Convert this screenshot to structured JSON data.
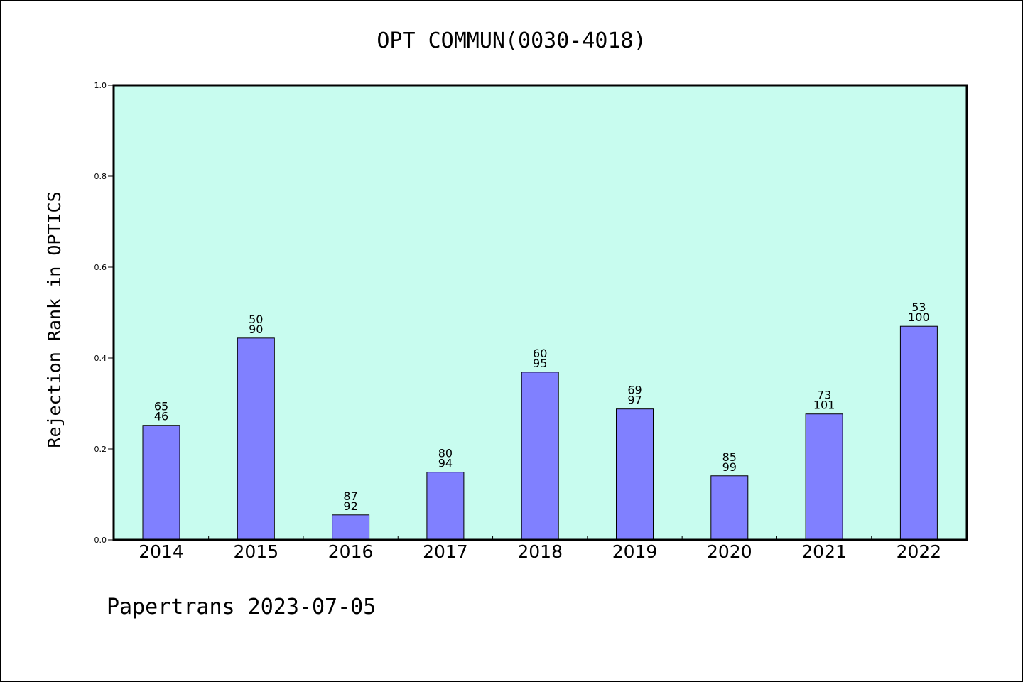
{
  "chart_data": {
    "type": "bar",
    "title": "OPT COMMUN(0030-4018)",
    "ylabel": "Rejection Rank in OPTICS",
    "xlabel": "",
    "ylim": [
      0,
      1
    ],
    "yticks": [
      "0.0",
      "0.2",
      "0.4",
      "0.6",
      "0.8",
      "1.0"
    ],
    "categories": [
      "2014",
      "2015",
      "2016",
      "2017",
      "2018",
      "2019",
      "2020",
      "2021",
      "2022"
    ],
    "values": [
      0.252,
      0.444,
      0.055,
      0.149,
      0.369,
      0.288,
      0.141,
      0.277,
      0.47
    ],
    "labels_top": [
      "65",
      "50",
      "87",
      "80",
      "60",
      "69",
      "85",
      "73",
      "53"
    ],
    "labels_bottom": [
      "46",
      "90",
      "92",
      "94",
      "95",
      "97",
      "99",
      "101",
      "100"
    ],
    "grid": false,
    "colors": {
      "plot_bg": "#c8fcef",
      "bar": "#8080ff"
    }
  },
  "footer": "Papertrans 2023-07-05"
}
